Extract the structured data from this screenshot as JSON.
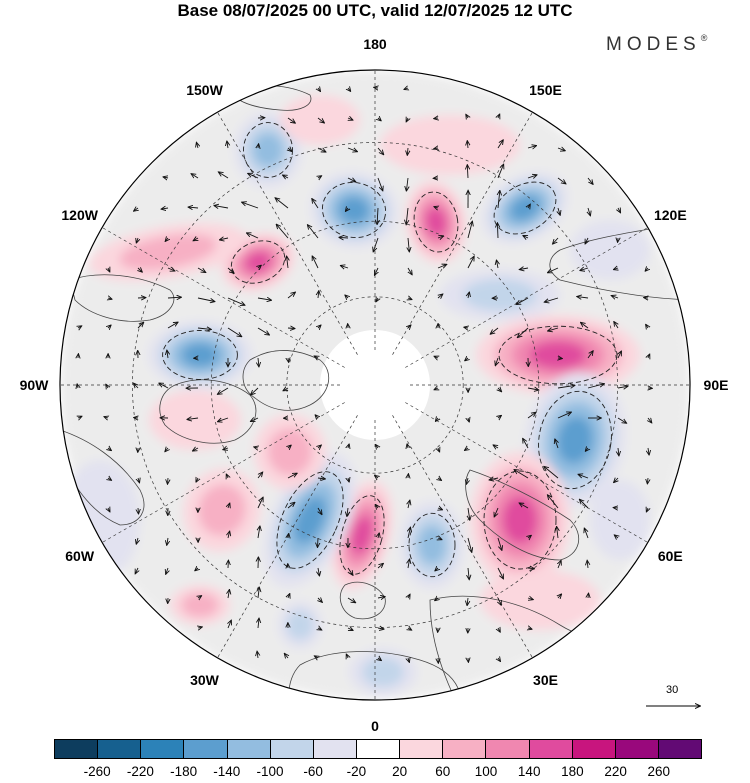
{
  "header": {
    "title": "Base 08/07/2025 00 UTC, valid 12/07/2025 12 UTC",
    "brand": "MODES",
    "brand_mark": "®"
  },
  "map": {
    "projection": "north polar stereographic",
    "longitude_labels": [
      "180",
      "150E",
      "120E",
      "90E",
      "60E",
      "30E",
      "0",
      "30W",
      "60W",
      "90W",
      "120W",
      "150W"
    ],
    "colors": {
      "frame": "#000000",
      "coastline": "#444444",
      "arrow": "#111111",
      "positive_core": "#c8157e",
      "negative_core": "#2a6fa7",
      "neutral": "#ececec"
    }
  },
  "reference_vector": {
    "label": "30"
  },
  "colorbar": {
    "colors": [
      "#0d3d5e",
      "#16608f",
      "#2c82b8",
      "#5c9ecf",
      "#93bde0",
      "#c2d5ea",
      "#e2e2f0",
      "#ffffff",
      "#fbd7de",
      "#f7b0c4",
      "#f087b0",
      "#e04b9e",
      "#c8157e",
      "#99087c",
      "#620a74"
    ],
    "ticks": [
      "-260",
      "-220",
      "-180",
      "-140",
      "-100",
      "-60",
      "-20",
      "20",
      "60",
      "100",
      "140",
      "180",
      "220",
      "260"
    ]
  }
}
